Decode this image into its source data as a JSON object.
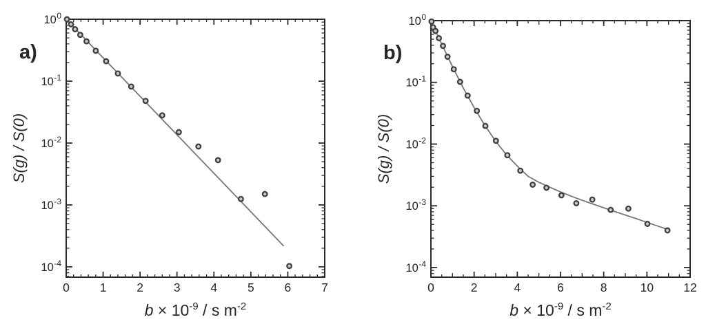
{
  "figure": {
    "background": "#ffffff",
    "colors": {
      "axis": "#2a2a2a",
      "text": "#262626",
      "fit_line": "#767676",
      "marker_stroke": "#3f3f3f",
      "marker_fill": "#cccccc"
    }
  },
  "chart_data": [
    {
      "id": "a",
      "type": "scatter",
      "panel_label": "a)",
      "xlabel": {
        "variable": "b",
        "mult": " × 10",
        "exp": "-9",
        "unit": " / s m",
        "unit_exp": "-2"
      },
      "ylabel": "S(g) / S(0)",
      "xlim": [
        0,
        7
      ],
      "ylim": [
        6.81e-05,
        1.0
      ],
      "x_major_ticks": [
        0,
        1,
        2,
        3,
        4,
        5,
        6,
        7
      ],
      "x_medium_ticks": [],
      "x_minor_step": 0.2,
      "y_decade_exponents": [
        0,
        -1,
        -2,
        -3,
        -4
      ],
      "grid": false,
      "legend": "none",
      "series": [
        {
          "name": "experimental-points",
          "type": "scatter",
          "points": [
            [
              0.02,
              1.0
            ],
            [
              0.13,
              0.83
            ],
            [
              0.24,
              0.69
            ],
            [
              0.38,
              0.56
            ],
            [
              0.55,
              0.44
            ],
            [
              0.8,
              0.31
            ],
            [
              1.08,
              0.21
            ],
            [
              1.4,
              0.133
            ],
            [
              1.76,
              0.082
            ],
            [
              2.15,
              0.048
            ],
            [
              2.6,
              0.028
            ],
            [
              3.05,
              0.015
            ],
            [
              3.58,
              0.0088
            ],
            [
              4.11,
              0.0053
            ],
            [
              4.73,
              0.00125
            ],
            [
              5.38,
              0.0015
            ],
            [
              6.04,
              0.000103
            ]
          ]
        },
        {
          "name": "monoexponential-fit-line",
          "type": "line",
          "points": [
            [
              0.0,
              1.0
            ],
            [
              5.88,
              0.00022
            ]
          ]
        }
      ]
    },
    {
      "id": "b",
      "type": "scatter",
      "panel_label": "b)",
      "xlabel": {
        "variable": "b",
        "mult": " × 10",
        "exp": "-9",
        "unit": " / s m",
        "unit_exp": "-2"
      },
      "ylabel": "S(g) / S(0)",
      "xlim": [
        0,
        12
      ],
      "ylim": [
        6.98e-05,
        1.0
      ],
      "x_major_ticks": [
        0,
        2,
        4,
        6,
        8,
        10,
        12
      ],
      "x_medium_ticks": [
        1,
        3,
        5,
        7,
        9,
        11
      ],
      "x_minor_step": 0.5,
      "y_decade_exponents": [
        0,
        -1,
        -2,
        -3,
        -4
      ],
      "grid": false,
      "legend": "none",
      "series": [
        {
          "name": "experimental-points",
          "type": "scatter",
          "points": [
            [
              0.03,
              0.97
            ],
            [
              0.1,
              0.78
            ],
            [
              0.21,
              0.68
            ],
            [
              0.37,
              0.52
            ],
            [
              0.56,
              0.39
            ],
            [
              0.77,
              0.26
            ],
            [
              1.06,
              0.163
            ],
            [
              1.35,
              0.102
            ],
            [
              1.7,
              0.061
            ],
            [
              2.13,
              0.0345
            ],
            [
              2.52,
              0.0197
            ],
            [
              3.01,
              0.0113
            ],
            [
              3.54,
              0.0066
            ],
            [
              4.14,
              0.0037
            ],
            [
              4.71,
              0.0022
            ],
            [
              5.35,
              0.00196
            ],
            [
              6.04,
              0.00148
            ],
            [
              6.73,
              0.0011
            ],
            [
              7.47,
              0.00126
            ],
            [
              8.32,
              0.00086
            ],
            [
              9.14,
              0.0009
            ],
            [
              10.02,
              0.00051
            ],
            [
              10.95,
              0.0004
            ]
          ]
        },
        {
          "name": "biexponential-fit-curve",
          "type": "line",
          "points": [
            [
              0.0,
              1.0
            ],
            [
              0.5,
              0.417
            ],
            [
              1.0,
              0.18
            ],
            [
              1.5,
              0.081
            ],
            [
              2.0,
              0.039
            ],
            [
              2.5,
              0.02
            ],
            [
              3.0,
              0.0111
            ],
            [
              3.5,
              0.0067
            ],
            [
              4.0,
              0.0044
            ],
            [
              4.5,
              0.003
            ],
            [
              5.0,
              0.0024
            ],
            [
              5.5,
              0.002
            ],
            [
              6.0,
              0.00168
            ],
            [
              6.5,
              0.00143
            ],
            [
              7.0,
              0.00123
            ],
            [
              7.5,
              0.00107
            ],
            [
              8.0,
              0.00093
            ],
            [
              8.5,
              0.00081
            ],
            [
              9.0,
              0.00071
            ],
            [
              9.5,
              0.00062
            ],
            [
              10.0,
              0.00054
            ],
            [
              10.5,
              0.00047
            ],
            [
              11.0,
              0.00041
            ]
          ]
        }
      ]
    }
  ]
}
